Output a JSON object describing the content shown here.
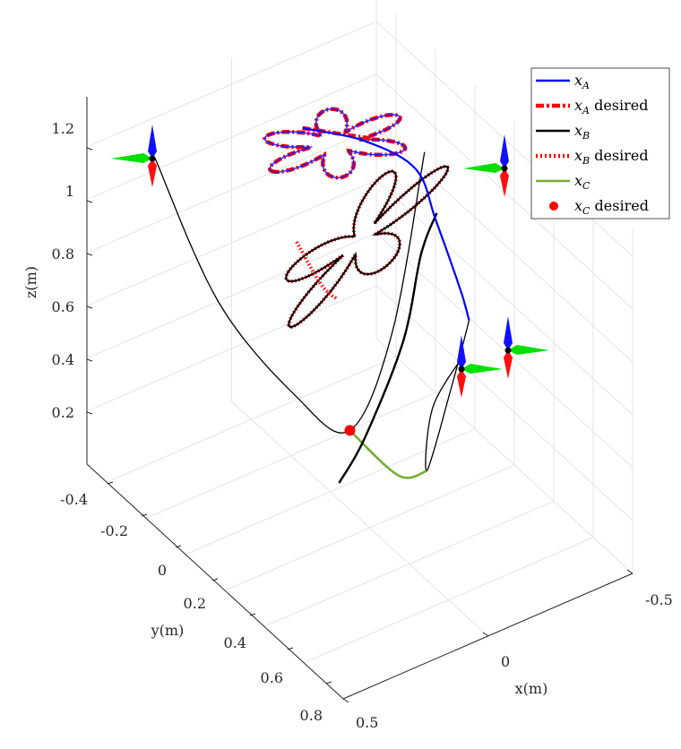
{
  "chart_data": {
    "type": "line3d",
    "title": "",
    "xlabel": "x(m)",
    "ylabel": "y(m)",
    "zlabel": "z(m)",
    "x_ticks": [
      "-0.5",
      "0",
      "0.5"
    ],
    "y_ticks": [
      "-0.4",
      "-0.2",
      "0",
      "0.2",
      "0.4",
      "0.6",
      "0.8"
    ],
    "z_ticks": [
      "0.2",
      "0.4",
      "0.6",
      "0.8",
      "1",
      "1.2"
    ],
    "xlim": [
      -0.5,
      0.5
    ],
    "ylim": [
      -0.5,
      0.8
    ],
    "zlim": [
      0.0,
      1.3
    ],
    "grid": true,
    "legend_position": "top-right",
    "legend": [
      {
        "symbol": "x",
        "sub": "A",
        "suffix": "",
        "style": "solid",
        "color": "#0000ff"
      },
      {
        "symbol": "x",
        "sub": "A",
        "suffix": " desired",
        "style": "dashdot",
        "color": "#ff0000"
      },
      {
        "symbol": "x",
        "sub": "B",
        "suffix": "",
        "style": "solid",
        "color": "#000000"
      },
      {
        "symbol": "x",
        "sub": "B",
        "suffix": " desired",
        "style": "dotted",
        "color": "#ff0000"
      },
      {
        "symbol": "x",
        "sub": "C",
        "suffix": "",
        "style": "solid",
        "color": "#77ac30"
      },
      {
        "symbol": "x",
        "sub": "C",
        "suffix": " desired",
        "style": "marker",
        "color": "#ff0000"
      }
    ],
    "series": [
      {
        "name": "x_A",
        "flower_petals": 6,
        "flower_center": [
          -0.03,
          -0.02,
          1.29
        ],
        "flower_radius": [
          0.22,
          0.07
        ],
        "transition_path": [
          [
            -0.02,
            -0.17,
            1.25
          ],
          [
            -0.2,
            -0.12,
            1.15
          ],
          [
            -0.35,
            -0.08,
            1.0
          ],
          [
            -0.4,
            -0.05,
            0.8
          ],
          [
            -0.45,
            0.0,
            0.55
          ],
          [
            -0.48,
            0.0,
            0.42
          ]
        ]
      },
      {
        "name": "x_A desired",
        "transition_path": [
          [
            -0.02,
            -0.17,
            1.25
          ],
          [
            -0.14,
            -0.14,
            1.19
          ],
          [
            -0.22,
            -0.12,
            1.15
          ]
        ]
      },
      {
        "name": "x_B",
        "flower_petals": 5,
        "flower_center": [
          -0.05,
          0.08,
          0.98
        ],
        "flower_radius": [
          0.25,
          0.05
        ],
        "transition_path": [
          [
            -0.3,
            0.1,
            0.98
          ],
          [
            -0.28,
            0.05,
            0.8
          ],
          [
            -0.15,
            0.15,
            0.6
          ],
          [
            0.05,
            0.25,
            0.4
          ],
          [
            0.16,
            0.28,
            0.3
          ]
        ],
        "tether_C_A": [
          [
            -0.48,
            0.0,
            0.42
          ],
          [
            -0.42,
            0.0,
            0.2
          ],
          [
            -0.3,
            0.05,
            -0.03
          ],
          [
            -0.32,
            0.05,
            0.2
          ],
          [
            -0.36,
            0.15,
            0.45
          ]
        ]
      },
      {
        "name": "x_B desired",
        "transition_path": [
          [
            0.15,
            0.05,
            1.05
          ],
          [
            0.1,
            0.1,
            0.9
          ],
          [
            0.06,
            0.12,
            0.84
          ]
        ]
      },
      {
        "name": "x_C",
        "path": [
          [
            0.0,
            0.1,
            0.3
          ],
          [
            -0.1,
            0.2,
            0.15
          ],
          [
            -0.3,
            0.05,
            -0.03
          ]
        ]
      },
      {
        "name": "x_C desired",
        "points": [
          [
            0.0,
            0.1,
            0.3
          ]
        ]
      }
    ]
  }
}
